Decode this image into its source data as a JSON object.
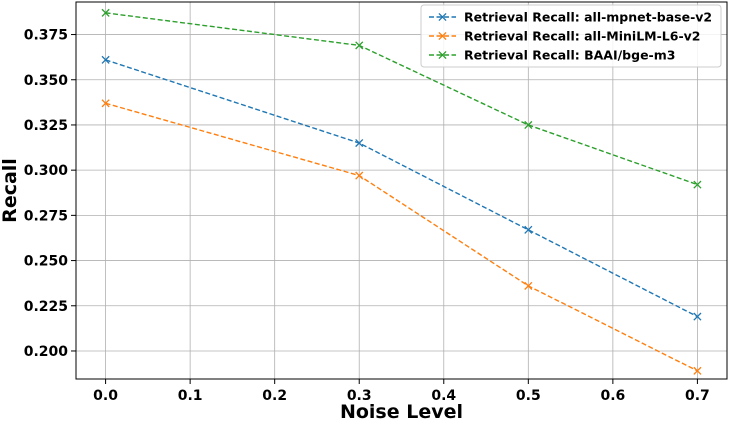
{
  "chart_data": {
    "type": "line",
    "title": "",
    "xlabel": "Noise Level",
    "ylabel": "Recall",
    "x": [
      0.0,
      0.3,
      0.5,
      0.7
    ],
    "xlim": [
      -0.035,
      0.735
    ],
    "ylim": [
      0.1845,
      0.393
    ],
    "xticks": [
      0.0,
      0.1,
      0.2,
      0.3,
      0.4,
      0.5,
      0.6,
      0.7
    ],
    "xtick_labels": [
      "0.0",
      "0.1",
      "0.2",
      "0.3",
      "0.4",
      "0.5",
      "0.6",
      "0.7"
    ],
    "yticks": [
      0.2,
      0.225,
      0.25,
      0.275,
      0.3,
      0.325,
      0.35,
      0.375
    ],
    "ytick_labels": [
      "0.200",
      "0.225",
      "0.250",
      "0.275",
      "0.300",
      "0.325",
      "0.350",
      "0.375"
    ],
    "grid": true,
    "legend_position": "top-right",
    "series": [
      {
        "name": "Retrieval Recall: all-mpnet-base-v2",
        "color": "#1f77b4",
        "marker": "x",
        "linestyle": "dashed",
        "values": [
          0.361,
          0.315,
          0.267,
          0.219
        ]
      },
      {
        "name": "Retrieval Recall: all-MiniLM-L6-v2",
        "color": "#ff7f0e",
        "marker": "x",
        "linestyle": "dashed",
        "values": [
          0.337,
          0.297,
          0.236,
          0.189
        ]
      },
      {
        "name": "Retrieval Recall: BAAI/bge-m3",
        "color": "#2ca02c",
        "marker": "x",
        "linestyle": "dashed",
        "values": [
          0.387,
          0.369,
          0.325,
          0.292
        ]
      }
    ]
  }
}
